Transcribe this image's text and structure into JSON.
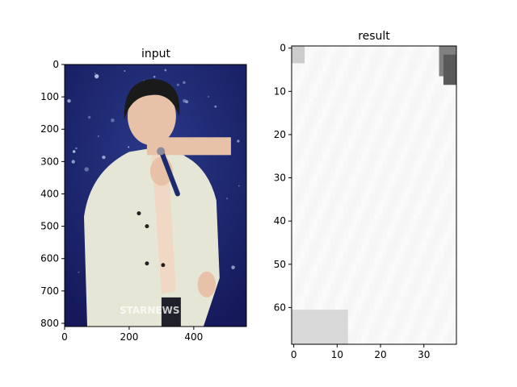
{
  "chart_data": [
    {
      "type": "heatmap",
      "title": "input",
      "xlabel": "",
      "ylabel": "",
      "xlim": [
        0,
        563
      ],
      "ylim": [
        810,
        0
      ],
      "xticks": [
        0,
        200,
        400
      ],
      "yticks": [
        0,
        100,
        200,
        300,
        400,
        500,
        600,
        700,
        800
      ],
      "watermark": "STARNEWS",
      "colors": {
        "background": "#15195a",
        "jacket": "#e6e6d6",
        "hair": "#1a1a1a",
        "skin": "#e8c2a8",
        "mic": "#1c2a6e"
      }
    },
    {
      "type": "heatmap",
      "title": "result",
      "xlabel": "",
      "ylabel": "",
      "xlim": [
        -0.5,
        37.5
      ],
      "ylim": [
        68.5,
        -0.5
      ],
      "xticks": [
        0,
        10,
        20,
        30
      ],
      "yticks": [
        0,
        10,
        20,
        30,
        40,
        50,
        60
      ],
      "colormap": "gray",
      "dark_regions": [
        {
          "x": [
            0,
            2
          ],
          "y": [
            0,
            3
          ],
          "level": 0.8
        },
        {
          "x": [
            34,
            37
          ],
          "y": [
            0,
            6
          ],
          "level": 0.5
        },
        {
          "x": [
            35,
            37
          ],
          "y": [
            2,
            8
          ],
          "level": 0.35
        },
        {
          "x": [
            0,
            12
          ],
          "y": [
            61,
            68
          ],
          "level": 0.85
        }
      ]
    }
  ]
}
